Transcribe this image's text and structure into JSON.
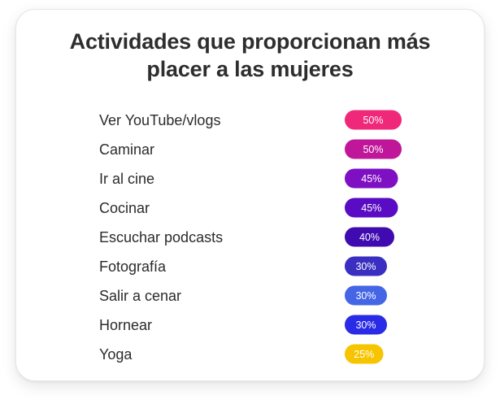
{
  "chart_data": {
    "type": "bar",
    "title": "Actividades que proporcionan más placer a las mujeres",
    "title_lines": [
      "Actividades que proporcionan más",
      "placer a las mujeres"
    ],
    "categories": [
      "Ver YouTube/vlogs",
      "Caminar",
      "Ir al cine",
      "Cocinar",
      "Escuchar podcasts",
      "Fotografía",
      "Salir a cenar",
      "Hornear",
      "Yoga"
    ],
    "values": [
      50,
      50,
      45,
      45,
      40,
      30,
      30,
      30,
      25
    ],
    "value_labels": [
      "50%",
      "50%",
      "45%",
      "45%",
      "40%",
      "30%",
      "30%",
      "30%",
      "25%"
    ],
    "colors": [
      "#f0287a",
      "#c0179a",
      "#7f0fc3",
      "#5a0cc4",
      "#3f0bb0",
      "#3a2fc0",
      "#4466e6",
      "#2a2be6",
      "#f7c400"
    ],
    "value_unit": "%",
    "legend": "none",
    "grid": false
  }
}
